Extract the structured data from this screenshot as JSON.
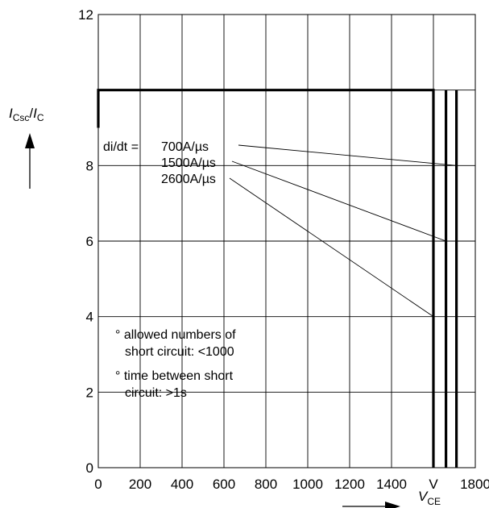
{
  "chart_data": {
    "type": "line",
    "title": "",
    "xlabel": "V_CE",
    "ylabel": "I_Csc/I_C",
    "xlim": [
      0,
      1800
    ],
    "ylim": [
      0,
      12
    ],
    "x_ticks": [
      "0",
      "200",
      "400",
      "600",
      "800",
      "1000",
      "1200",
      "1400",
      "V",
      "1800"
    ],
    "y_ticks": [
      "0",
      "2",
      "4",
      "6",
      "8",
      "12"
    ],
    "grid": true,
    "series": [
      {
        "x": [
          0,
          0,
          1600,
          1600
        ],
        "y": [
          9,
          10,
          10,
          0
        ]
      },
      {
        "x": [
          1660,
          1660
        ],
        "y": [
          10,
          0
        ]
      },
      {
        "x": [
          1710,
          1710
        ],
        "y": [
          10,
          0
        ]
      }
    ],
    "annotations": {
      "didt_label": "di/dt =",
      "rate_labels": [
        {
          "text": "700A/µs",
          "points_to": [
            1710,
            8
          ]
        },
        {
          "text": "1500A/µs",
          "points_to": [
            1660,
            6
          ]
        },
        {
          "text": "2600A/µs",
          "points_to": [
            1600,
            4
          ]
        }
      ],
      "note_1_line_1": "° allowed numbers of",
      "note_1_line_2": "short circuit: <1000",
      "note_2_line_1": "° time between short",
      "note_2_line_2": "circuit: >1s"
    },
    "y_axis_label": {
      "main_1": "I",
      "sub_1": "Csc",
      "slash": "/",
      "main_2": "I",
      "sub_2": "C"
    },
    "x_axis_label": {
      "main": "V",
      "sub": "CE"
    }
  }
}
